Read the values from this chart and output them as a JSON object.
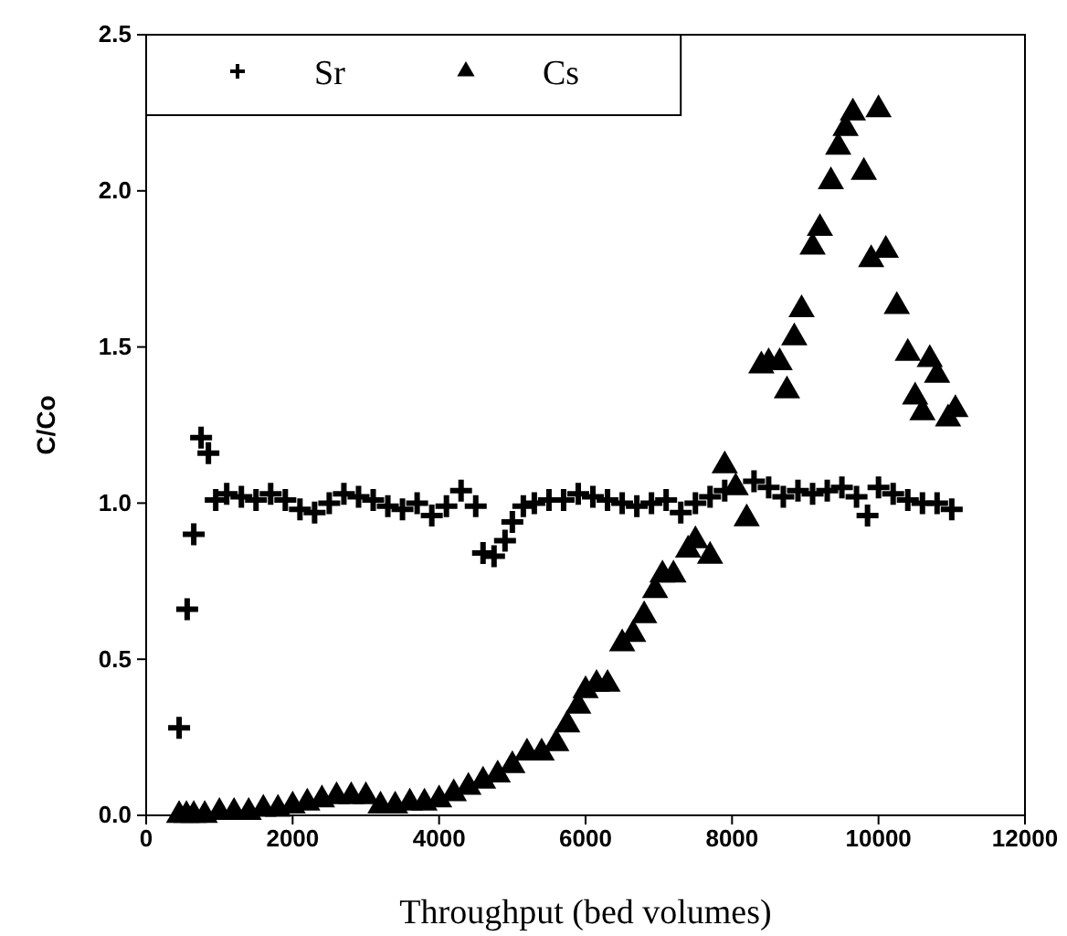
{
  "chart_data": {
    "type": "scatter",
    "xlabel": "Throughput (bed volumes)",
    "ylabel": "C/Co",
    "xlim": [
      0,
      12000
    ],
    "ylim": [
      0,
      2.5
    ],
    "xticks": [
      0,
      2000,
      4000,
      6000,
      8000,
      10000,
      12000
    ],
    "yticks": [
      {
        "value": 0,
        "label": "0.0"
      },
      {
        "value": 0.5,
        "label": "0.5"
      },
      {
        "value": 1,
        "label": "1.0"
      },
      {
        "value": 1.5,
        "label": "1.5"
      },
      {
        "value": 2,
        "label": "2.0"
      },
      {
        "value": 2.5,
        "label": "2.5"
      }
    ],
    "grid": false,
    "legend": "top left",
    "series": [
      {
        "name": "Sr",
        "color": "#000000",
        "marker": "cross",
        "x": [
          450,
          560,
          650,
          750,
          850,
          950,
          1100,
          1300,
          1500,
          1700,
          1900,
          2100,
          2300,
          2500,
          2700,
          2900,
          3100,
          3300,
          3500,
          3700,
          3900,
          4100,
          4300,
          4500,
          4600,
          4750,
          4900,
          5000,
          5150,
          5300,
          5500,
          5700,
          5900,
          6100,
          6300,
          6500,
          6700,
          6900,
          7100,
          7300,
          7500,
          7700,
          7900,
          8300,
          8500,
          8700,
          8900,
          9100,
          9300,
          9500,
          9700,
          9850,
          10000,
          10200,
          10400,
          10600,
          10800,
          11000
        ],
        "values": [
          0.28,
          0.66,
          0.9,
          1.21,
          1.16,
          1.01,
          1.03,
          1.02,
          1.01,
          1.03,
          1.01,
          0.98,
          0.97,
          1.0,
          1.03,
          1.02,
          1.01,
          0.99,
          0.98,
          1.0,
          0.96,
          0.99,
          1.04,
          0.99,
          0.84,
          0.83,
          0.88,
          0.94,
          0.99,
          1.0,
          1.01,
          1.01,
          1.03,
          1.02,
          1.01,
          1.0,
          0.99,
          1.0,
          1.01,
          0.97,
          1.0,
          1.02,
          1.04,
          1.07,
          1.05,
          1.02,
          1.04,
          1.03,
          1.04,
          1.05,
          1.02,
          0.96,
          1.05,
          1.03,
          1.01,
          1.0,
          1.0,
          0.98
        ]
      },
      {
        "name": "Cs",
        "color": "#000000",
        "marker": "triangle",
        "x": [
          450,
          550,
          650,
          800,
          1000,
          1200,
          1400,
          1600,
          1800,
          2000,
          2200,
          2400,
          2600,
          2800,
          3000,
          3200,
          3400,
          3600,
          3800,
          4000,
          4200,
          4400,
          4600,
          4800,
          5000,
          5200,
          5400,
          5600,
          5750,
          5900,
          6000,
          6150,
          6300,
          6500,
          6650,
          6800,
          6950,
          7050,
          7200,
          7400,
          7500,
          7700,
          7900,
          8050,
          8200,
          8400,
          8500,
          8650,
          8750,
          8850,
          8950,
          9100,
          9200,
          9350,
          9450,
          9550,
          9650,
          9800,
          9900,
          10000,
          10100,
          10250,
          10400,
          10500,
          10600,
          10700,
          10800,
          10950,
          11050
        ],
        "values": [
          0,
          0,
          0,
          0,
          0.01,
          0.01,
          0.01,
          0.02,
          0.02,
          0.03,
          0.04,
          0.05,
          0.06,
          0.06,
          0.06,
          0.03,
          0.03,
          0.04,
          0.04,
          0.05,
          0.07,
          0.09,
          0.11,
          0.13,
          0.16,
          0.2,
          0.2,
          0.23,
          0.29,
          0.35,
          0.4,
          0.42,
          0.42,
          0.55,
          0.58,
          0.64,
          0.72,
          0.77,
          0.77,
          0.85,
          0.88,
          0.83,
          1.12,
          1.05,
          0.95,
          1.44,
          1.45,
          1.45,
          1.36,
          1.53,
          1.62,
          1.82,
          1.88,
          2.03,
          2.14,
          2.2,
          2.25,
          2.06,
          1.78,
          2.26,
          1.81,
          1.63,
          1.48,
          1.34,
          1.29,
          1.46,
          1.41,
          1.27,
          1.3
        ]
      }
    ]
  }
}
